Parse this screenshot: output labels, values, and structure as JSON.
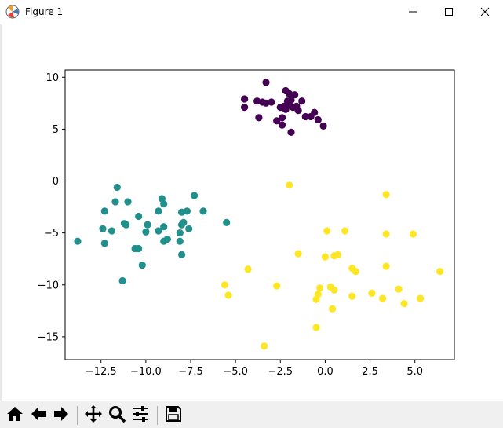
{
  "window": {
    "title": "Figure 1"
  },
  "toolbar": {
    "buttons": [
      {
        "name": "home-button",
        "icon": "home-icon"
      },
      {
        "name": "back-button",
        "icon": "arrow-left-icon"
      },
      {
        "name": "forward-button",
        "icon": "arrow-right-icon"
      },
      {
        "name": "pan-button",
        "icon": "move-icon"
      },
      {
        "name": "zoom-button",
        "icon": "magnifier-icon"
      },
      {
        "name": "configure-subplots-button",
        "icon": "sliders-icon"
      },
      {
        "name": "save-button",
        "icon": "floppy-disk-icon"
      }
    ]
  },
  "chart_data": {
    "type": "scatter",
    "title": "",
    "xlabel": "",
    "ylabel": "",
    "xlim": [
      -14.5,
      7.2
    ],
    "ylim": [
      -17.2,
      10.7
    ],
    "xticks": [
      -12.5,
      -10.0,
      -7.5,
      -5.0,
      -2.5,
      0.0,
      2.5,
      5.0
    ],
    "xtick_labels": [
      "−12.5",
      "−10.0",
      "−7.5",
      "−5.0",
      "−2.5",
      "0.0",
      "2.5",
      "5.0"
    ],
    "yticks": [
      10,
      5,
      0,
      -5,
      -10,
      -15
    ],
    "ytick_labels": [
      "10",
      "5",
      "0",
      "−5",
      "−10",
      "−15"
    ],
    "grid": false,
    "series": [
      {
        "color": "#440154",
        "points": [
          [
            -3.3,
            9.5
          ],
          [
            -2.2,
            8.7
          ],
          [
            -2.0,
            8.4
          ],
          [
            -1.7,
            8.3
          ],
          [
            -4.5,
            7.9
          ],
          [
            -3.8,
            7.7
          ],
          [
            -3.5,
            7.6
          ],
          [
            -3.3,
            7.5
          ],
          [
            -3.0,
            7.6
          ],
          [
            -2.1,
            7.7
          ],
          [
            -1.3,
            7.7
          ],
          [
            -4.5,
            7.1
          ],
          [
            -2.5,
            7.1
          ],
          [
            -2.3,
            7.2
          ],
          [
            -2.0,
            7.3
          ],
          [
            -1.8,
            7.1
          ],
          [
            -1.6,
            7.2
          ],
          [
            -2.2,
            6.9
          ],
          [
            -1.5,
            6.8
          ],
          [
            -0.6,
            6.6
          ],
          [
            -3.7,
            6.1
          ],
          [
            -1.1,
            6.2
          ],
          [
            -2.7,
            5.8
          ],
          [
            -2.4,
            6.1
          ],
          [
            -0.8,
            6.2
          ],
          [
            -0.4,
            5.9
          ],
          [
            -2.4,
            5.4
          ],
          [
            -0.1,
            5.3
          ],
          [
            -1.9,
            4.7
          ],
          [
            -1.9,
            7.8
          ]
        ]
      },
      {
        "color": "#21908d",
        "points": [
          [
            -11.6,
            -0.6
          ],
          [
            -7.3,
            -1.4
          ],
          [
            -9.1,
            -1.7
          ],
          [
            -11.7,
            -2.0
          ],
          [
            -11.0,
            -2.0
          ],
          [
            -9.0,
            -2.2
          ],
          [
            -12.3,
            -2.9
          ],
          [
            -7.7,
            -2.9
          ],
          [
            -6.8,
            -2.9
          ],
          [
            -9.3,
            -2.9
          ],
          [
            -8.0,
            -3.0
          ],
          [
            -10.4,
            -3.4
          ],
          [
            -11.2,
            -4.1
          ],
          [
            -11.1,
            -4.2
          ],
          [
            -9.9,
            -4.2
          ],
          [
            -5.5,
            -4.0
          ],
          [
            -8.0,
            -4.2
          ],
          [
            -9.0,
            -4.4
          ],
          [
            -12.4,
            -4.6
          ],
          [
            -11.9,
            -4.8
          ],
          [
            -9.3,
            -4.8
          ],
          [
            -7.6,
            -4.6
          ],
          [
            -10.0,
            -4.9
          ],
          [
            -8.1,
            -5.0
          ],
          [
            -13.8,
            -5.8
          ],
          [
            -9.0,
            -5.8
          ],
          [
            -8.8,
            -5.6
          ],
          [
            -12.3,
            -6.0
          ],
          [
            -8.1,
            -5.8
          ],
          [
            -10.6,
            -6.5
          ],
          [
            -10.4,
            -6.5
          ],
          [
            -8.0,
            -7.1
          ],
          [
            -10.2,
            -8.1
          ],
          [
            -11.3,
            -9.6
          ],
          [
            -7.9,
            -4.0
          ]
        ]
      },
      {
        "color": "#fde725",
        "points": [
          [
            -2.0,
            -0.4
          ],
          [
            3.4,
            -1.3
          ],
          [
            0.1,
            -4.8
          ],
          [
            1.1,
            -4.8
          ],
          [
            3.4,
            -5.1
          ],
          [
            4.9,
            -5.1
          ],
          [
            -1.5,
            -7.0
          ],
          [
            0.5,
            -7.2
          ],
          [
            0.7,
            -7.1
          ],
          [
            0.0,
            -7.3
          ],
          [
            3.4,
            -8.2
          ],
          [
            1.5,
            -8.4
          ],
          [
            1.7,
            -8.7
          ],
          [
            6.4,
            -8.7
          ],
          [
            -4.3,
            -8.5
          ],
          [
            -5.6,
            -10.0
          ],
          [
            -2.7,
            -10.1
          ],
          [
            -0.3,
            -10.3
          ],
          [
            0.3,
            -10.2
          ],
          [
            0.5,
            -10.5
          ],
          [
            4.1,
            -10.4
          ],
          [
            -5.4,
            -11.0
          ],
          [
            -0.4,
            -10.9
          ],
          [
            -0.5,
            -11.4
          ],
          [
            1.5,
            -11.1
          ],
          [
            2.6,
            -10.8
          ],
          [
            3.2,
            -11.3
          ],
          [
            5.3,
            -11.3
          ],
          [
            4.4,
            -11.8
          ],
          [
            0.4,
            -12.3
          ],
          [
            -0.5,
            -14.1
          ],
          [
            -3.4,
            -15.9
          ]
        ]
      }
    ]
  }
}
